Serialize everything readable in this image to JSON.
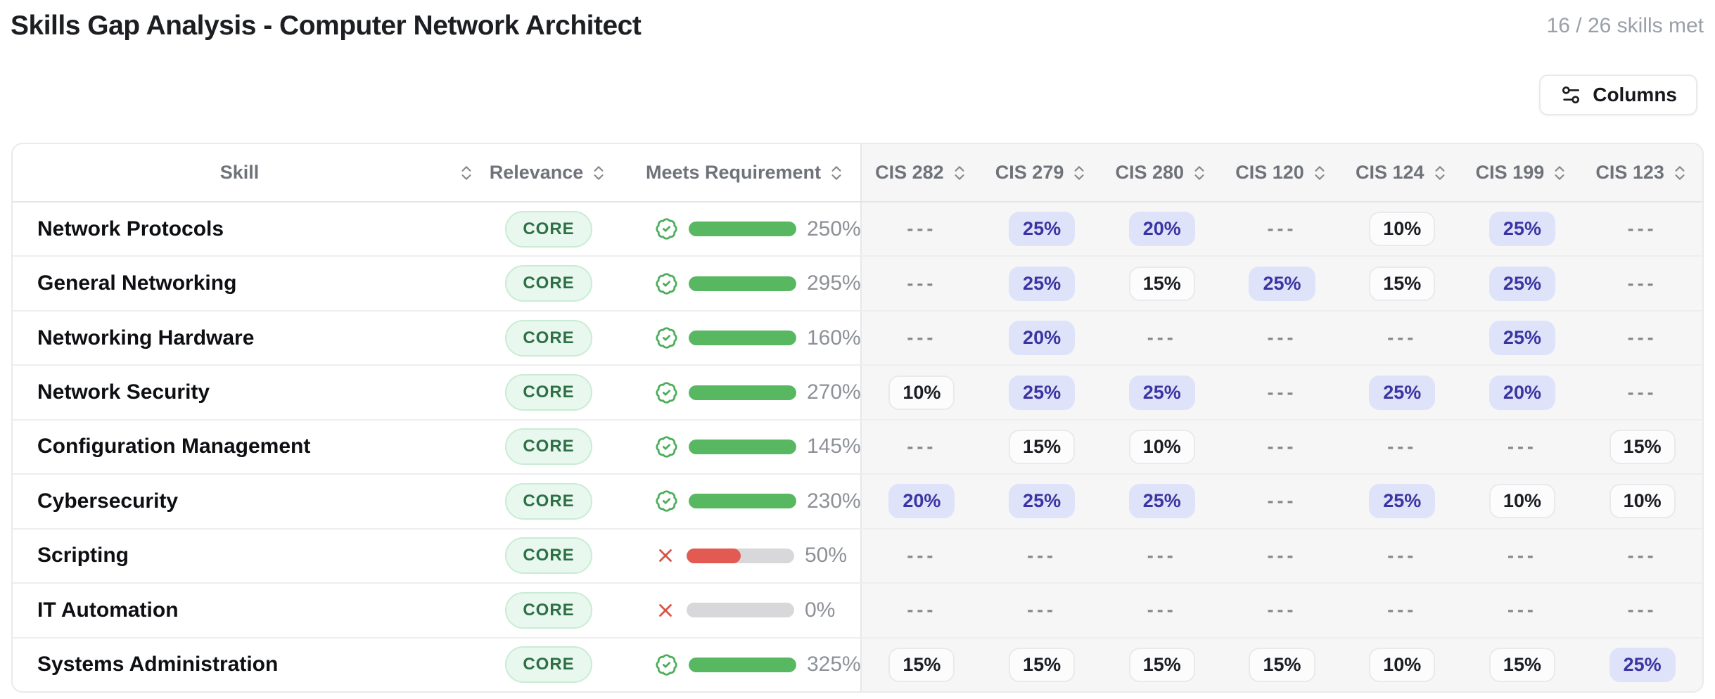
{
  "header": {
    "title": "Skills Gap Analysis - Computer Network Architect",
    "summary": "16 / 26 skills met"
  },
  "toolbar": {
    "columns_label": "Columns",
    "columns_icon": "sliders-settings-icon"
  },
  "icons": {
    "sort": "chevrons-up-down-icon",
    "met": "badge-check-icon",
    "not_met": "x-icon"
  },
  "colors": {
    "met_green": "#57b861",
    "not_met_red": "#e25a51",
    "bar_track": "#d8d8da",
    "core_badge_bg": "#e9f8ee",
    "core_badge_text": "#2e7046",
    "pill_purple_bg": "#dfe3fa",
    "pill_purple_text": "#3a35a1",
    "pill_gray_bg": "#fcfcfd",
    "cis_section_bg": "#f6f6f7"
  },
  "table": {
    "columns": [
      {
        "label": "Skill"
      },
      {
        "label": "Relevance"
      },
      {
        "label": "Meets Requirement"
      },
      {
        "label": "CIS 282"
      },
      {
        "label": "CIS 279"
      },
      {
        "label": "CIS 280"
      },
      {
        "label": "CIS 120"
      },
      {
        "label": "CIS 124"
      },
      {
        "label": "CIS 199"
      },
      {
        "label": "CIS 123"
      }
    ],
    "empty_text": "---",
    "rows": [
      {
        "skill": "Network Protocols",
        "relevance": "CORE",
        "meets_requirement": true,
        "progress": "250%",
        "courses": [
          null,
          "25%",
          "20%",
          null,
          "10%",
          "25%",
          null
        ]
      },
      {
        "skill": "General Networking",
        "relevance": "CORE",
        "meets_requirement": true,
        "progress": "295%",
        "courses": [
          null,
          "25%",
          "15%",
          "25%",
          "15%",
          "25%",
          null
        ]
      },
      {
        "skill": "Networking Hardware",
        "relevance": "CORE",
        "meets_requirement": true,
        "progress": "160%",
        "courses": [
          null,
          "20%",
          null,
          null,
          null,
          "25%",
          null
        ]
      },
      {
        "skill": "Network Security",
        "relevance": "CORE",
        "meets_requirement": true,
        "progress": "270%",
        "courses": [
          "10%",
          "25%",
          "25%",
          null,
          "25%",
          "20%",
          null
        ]
      },
      {
        "skill": "Configuration Management",
        "relevance": "CORE",
        "meets_requirement": true,
        "progress": "145%",
        "courses": [
          null,
          "15%",
          "10%",
          null,
          null,
          null,
          "15%"
        ]
      },
      {
        "skill": "Cybersecurity",
        "relevance": "CORE",
        "meets_requirement": true,
        "progress": "230%",
        "courses": [
          "20%",
          "25%",
          "25%",
          null,
          "25%",
          "10%",
          "10%"
        ]
      },
      {
        "skill": "Scripting",
        "relevance": "CORE",
        "meets_requirement": false,
        "progress": "50%",
        "courses": [
          null,
          null,
          null,
          null,
          null,
          null,
          null
        ]
      },
      {
        "skill": "IT Automation",
        "relevance": "CORE",
        "meets_requirement": false,
        "progress": "0%",
        "courses": [
          null,
          null,
          null,
          null,
          null,
          null,
          null
        ]
      },
      {
        "skill": "Systems Administration",
        "relevance": "CORE",
        "meets_requirement": true,
        "progress": "325%",
        "courses": [
          "15%",
          "15%",
          "15%",
          "15%",
          "10%",
          "15%",
          "25%"
        ]
      }
    ]
  }
}
